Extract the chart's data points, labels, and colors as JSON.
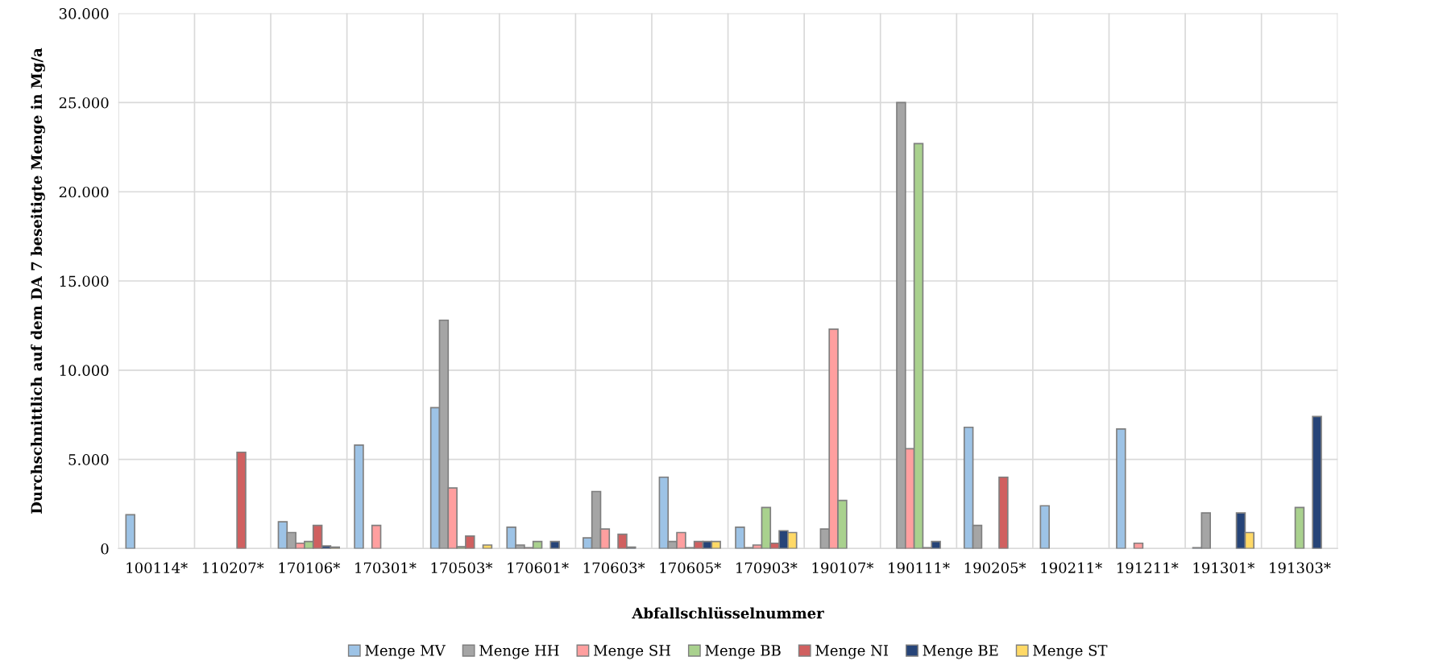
{
  "chart_data": {
    "type": "bar",
    "xlabel": "Abfallschlüsselnummer",
    "ylabel": "Durchschnittlich auf dem DA 7 beseitigte Menge in Mg/a",
    "categories": [
      "100114*",
      "110207*",
      "170106*",
      "170301*",
      "170503*",
      "170601*",
      "170603*",
      "170605*",
      "170903*",
      "190107*",
      "190111*",
      "190205*",
      "190211*",
      "191211*",
      "191301*",
      "191303*"
    ],
    "series": [
      {
        "name": "Menge MV",
        "color": "#9dc3e6",
        "values": [
          1900,
          null,
          1500,
          5800,
          7900,
          1200,
          600,
          4000,
          1200,
          null,
          null,
          6800,
          2400,
          6700,
          50,
          null
        ]
      },
      {
        "name": "Menge HH",
        "color": "#a5a5a5",
        "values": [
          null,
          null,
          900,
          null,
          12800,
          200,
          3200,
          400,
          50,
          1100,
          25000,
          1300,
          null,
          null,
          2000,
          null
        ]
      },
      {
        "name": "Menge SH",
        "color": "#ff9f9f",
        "values": [
          null,
          null,
          300,
          1300,
          3400,
          50,
          1100,
          900,
          200,
          12300,
          5600,
          null,
          null,
          300,
          null,
          null
        ]
      },
      {
        "name": "Menge BB",
        "color": "#a9d18e",
        "values": [
          null,
          null,
          400,
          null,
          100,
          400,
          null,
          50,
          2300,
          2700,
          22700,
          null,
          null,
          null,
          null,
          2300
        ]
      },
      {
        "name": "Menge NI",
        "color": "#d06060",
        "values": [
          null,
          5400,
          1300,
          null,
          700,
          null,
          800,
          400,
          300,
          null,
          50,
          4000,
          null,
          null,
          null,
          null
        ]
      },
      {
        "name": "Menge BE",
        "color": "#264478",
        "values": [
          null,
          null,
          150,
          null,
          null,
          400,
          80,
          400,
          1000,
          null,
          400,
          null,
          null,
          null,
          2000,
          7400
        ]
      },
      {
        "name": "Menge ST",
        "color": "#ffd966",
        "values": [
          null,
          null,
          80,
          null,
          200,
          null,
          null,
          400,
          900,
          null,
          null,
          null,
          null,
          null,
          900,
          null
        ]
      }
    ],
    "ylim": [
      0,
      30000
    ],
    "yticks": [
      {
        "value": 0,
        "label": "0"
      },
      {
        "value": 5000,
        "label": "5.000"
      },
      {
        "value": 10000,
        "label": "10.000"
      },
      {
        "value": 15000,
        "label": "15.000"
      },
      {
        "value": 20000,
        "label": "20.000"
      },
      {
        "value": 25000,
        "label": "25.000"
      },
      {
        "value": 30000,
        "label": "30.000"
      }
    ],
    "grid": true,
    "legend": "bottom"
  }
}
